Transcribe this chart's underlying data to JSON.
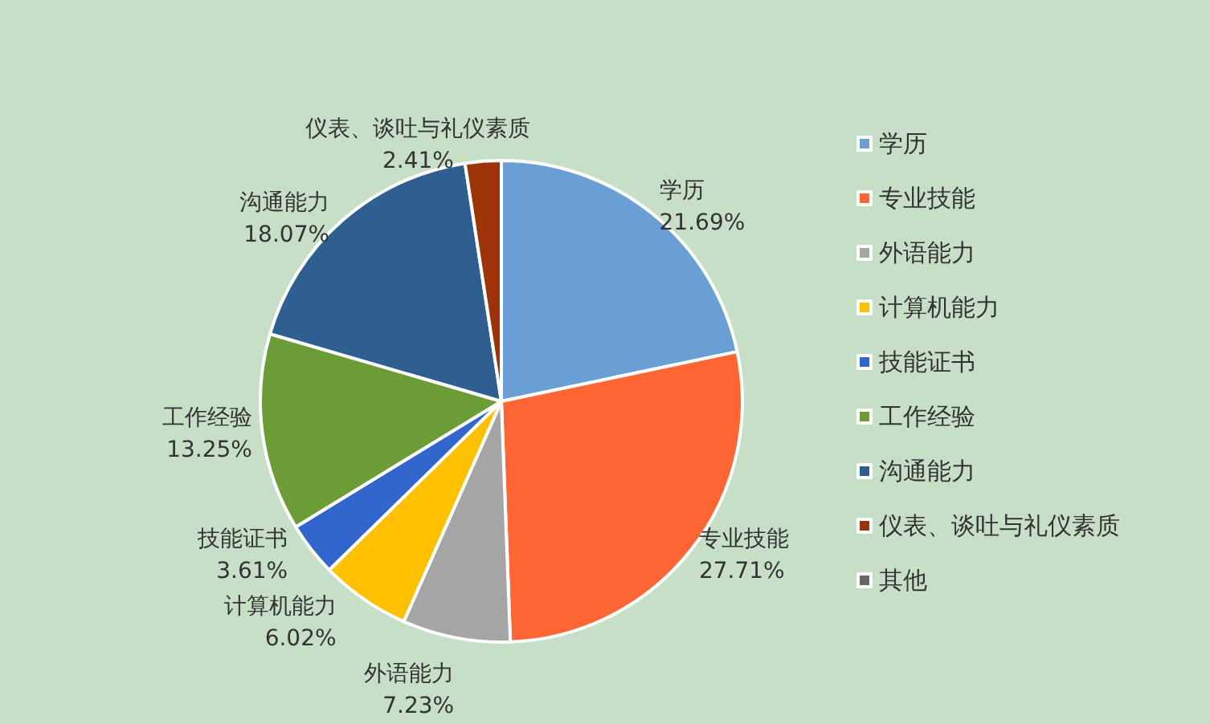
{
  "chart_data": {
    "type": "pie",
    "categories": [
      "学历",
      "专业技能",
      "外语能力",
      "计算机能力",
      "技能证书",
      "工作经验",
      "沟通能力",
      "仪表、谈吐与礼仪素质",
      "其他"
    ],
    "values": [
      21.69,
      27.71,
      7.23,
      6.02,
      3.61,
      13.25,
      18.07,
      2.41,
      0
    ],
    "value_labels": [
      "21.69%",
      "27.71%",
      "7.23%",
      "6.02%",
      "3.61%",
      "13.25%",
      "18.07%",
      "2.41%",
      null
    ],
    "colors": [
      "#6a9fd6",
      "#ff6633",
      "#a5a5a5",
      "#ffc000",
      "#3366cc",
      "#6b9c35",
      "#2f5f91",
      "#9c3309",
      "#666666"
    ],
    "legend": "right"
  }
}
